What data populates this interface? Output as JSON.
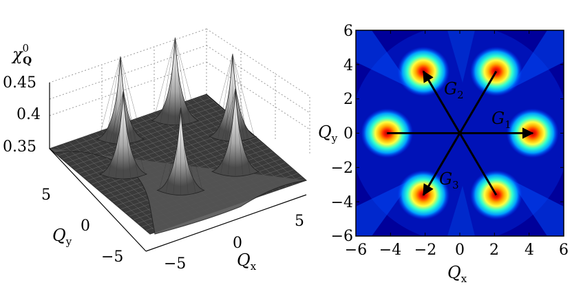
{
  "chart_data": [
    {
      "type": "surface",
      "title": "",
      "zlabel": "χ",
      "zlabel_sup": "0",
      "zlabel_sub": "Q",
      "xlabel": "Q",
      "xlabel_sub": "x",
      "ylabel": "Q",
      "ylabel_sub": "y",
      "zticks": [
        "0.35",
        "0.4",
        "0.45"
      ],
      "xticks": [
        "−5",
        "0",
        "5"
      ],
      "yticks": [
        "−5",
        "0",
        "5"
      ],
      "zlim": [
        0.33,
        0.45
      ],
      "xlim": [
        -6,
        6
      ],
      "ylim": [
        -6,
        6
      ],
      "grid": true,
      "colormap": "gray",
      "peaks": [
        {
          "qx": 4.2,
          "qy": 0,
          "z": 0.43
        },
        {
          "qx": 2.1,
          "qy": 3.6,
          "z": 0.43
        },
        {
          "qx": -2.1,
          "qy": 3.6,
          "z": 0.43
        },
        {
          "qx": -4.2,
          "qy": 0,
          "z": 0.43
        },
        {
          "qx": -2.1,
          "qy": -3.6,
          "z": 0.43
        },
        {
          "qx": 2.1,
          "qy": -3.6,
          "z": 0.43
        }
      ]
    },
    {
      "type": "heatmap",
      "title": "",
      "xlabel": "Q",
      "xlabel_sub": "x",
      "ylabel": "Q",
      "ylabel_sub": "y",
      "xlim": [
        -6,
        6
      ],
      "ylim": [
        -6,
        6
      ],
      "xticks": [
        "−6",
        "−4",
        "−2",
        "0",
        "2",
        "4",
        "6"
      ],
      "yticks": [
        "6",
        "4",
        "2",
        "0",
        "−2",
        "−4",
        "−6"
      ],
      "colormap": "jet",
      "colors": {
        "low": "#00008f",
        "mid": "#00ffff",
        "high": "#ff0000"
      },
      "hotspots": [
        {
          "qx": 4.2,
          "qy": 0
        },
        {
          "qx": 2.1,
          "qy": 3.6
        },
        {
          "qx": -2.1,
          "qy": 3.6
        },
        {
          "qx": -4.2,
          "qy": 0
        },
        {
          "qx": -2.1,
          "qy": -3.6
        },
        {
          "qx": 2.1,
          "qy": -3.6
        }
      ],
      "vectors": [
        {
          "name": "G",
          "sub": "1",
          "from": [
            -4.2,
            0
          ],
          "to": [
            4.2,
            0
          ]
        },
        {
          "name": "G",
          "sub": "2",
          "from": [
            2.1,
            -3.6
          ],
          "to": [
            -2.1,
            3.6
          ]
        },
        {
          "name": "G",
          "sub": "3",
          "from": [
            2.1,
            3.6
          ],
          "to": [
            -2.1,
            -3.6
          ]
        }
      ]
    }
  ]
}
